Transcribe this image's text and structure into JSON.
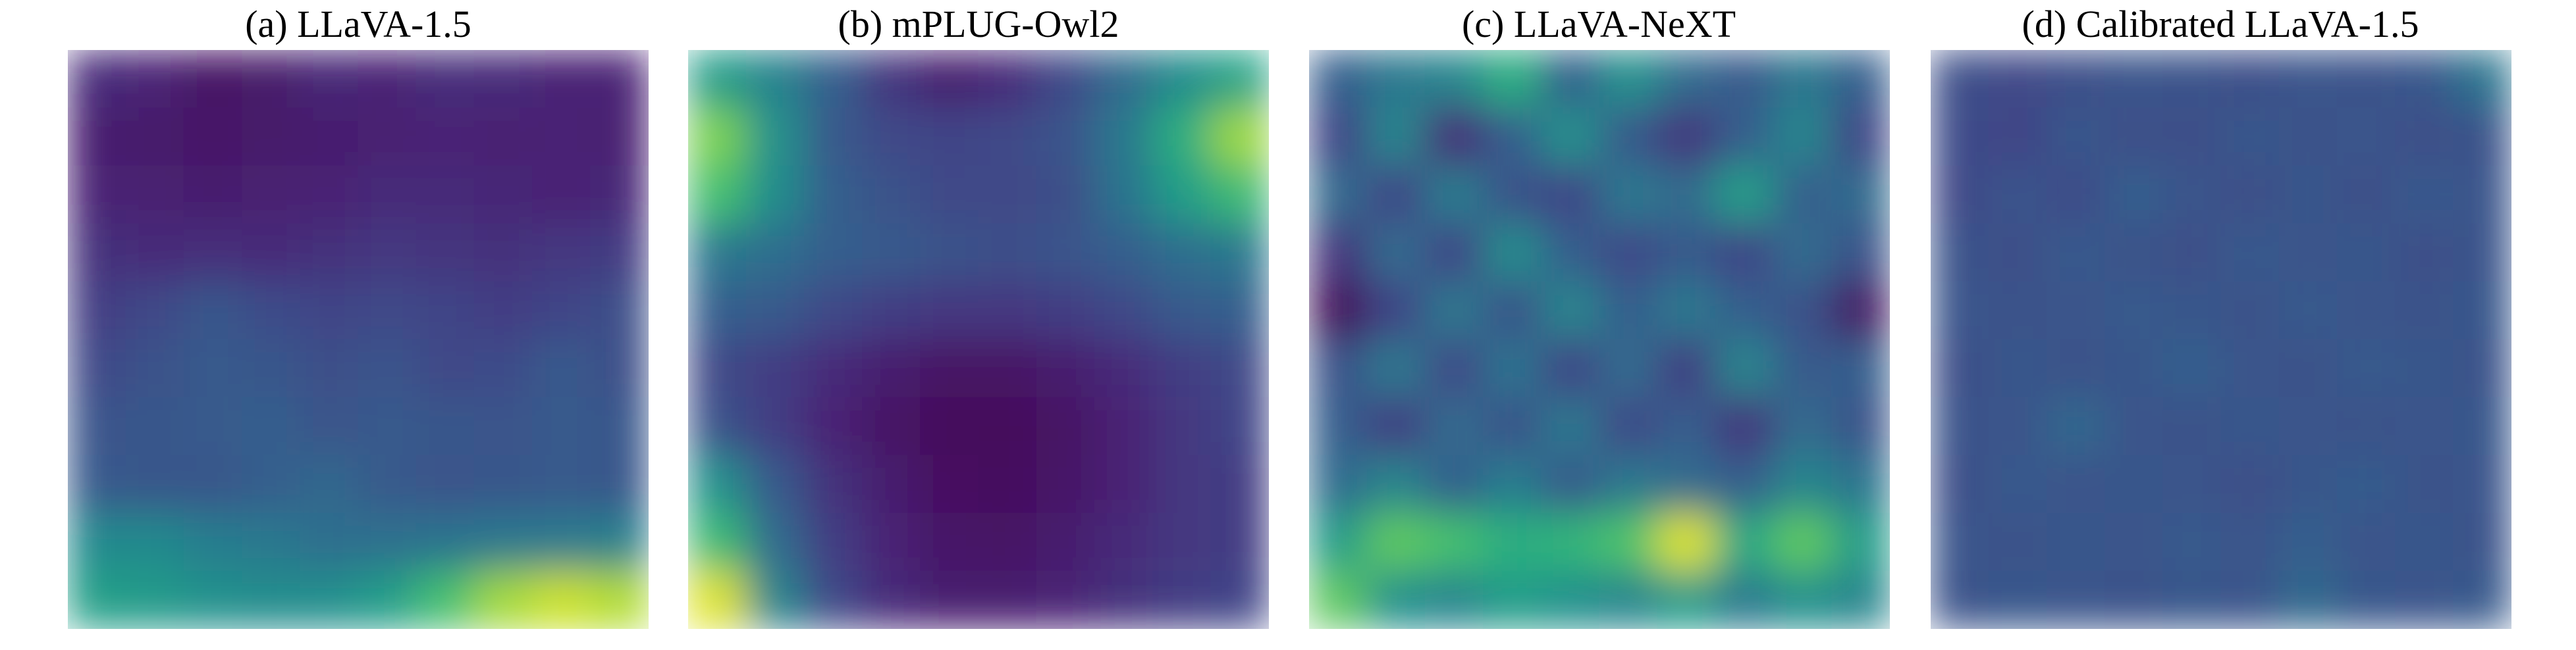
{
  "chart_data": [
    {
      "type": "heatmap",
      "title": "(a) LLaVA-1.5",
      "colormap": "viridis",
      "grid": false,
      "values": [
        [
          0.12,
          0.1,
          0.05,
          0.07,
          0.11,
          0.1,
          0.13,
          0.12,
          0.1,
          0.1
        ],
        [
          0.08,
          0.07,
          0.06,
          0.07,
          0.08,
          0.09,
          0.1,
          0.09,
          0.1,
          0.09
        ],
        [
          0.1,
          0.09,
          0.08,
          0.09,
          0.1,
          0.12,
          0.12,
          0.11,
          0.1,
          0.11
        ],
        [
          0.14,
          0.12,
          0.13,
          0.12,
          0.14,
          0.16,
          0.15,
          0.14,
          0.16,
          0.17
        ],
        [
          0.18,
          0.22,
          0.27,
          0.23,
          0.2,
          0.22,
          0.2,
          0.18,
          0.2,
          0.24
        ],
        [
          0.22,
          0.25,
          0.28,
          0.27,
          0.24,
          0.26,
          0.22,
          0.23,
          0.28,
          0.24
        ],
        [
          0.26,
          0.27,
          0.28,
          0.3,
          0.26,
          0.28,
          0.27,
          0.26,
          0.28,
          0.27
        ],
        [
          0.28,
          0.27,
          0.27,
          0.3,
          0.33,
          0.28,
          0.26,
          0.27,
          0.28,
          0.27
        ],
        [
          0.47,
          0.47,
          0.42,
          0.4,
          0.36,
          0.37,
          0.38,
          0.4,
          0.41,
          0.43
        ],
        [
          0.56,
          0.54,
          0.5,
          0.48,
          0.49,
          0.55,
          0.7,
          0.86,
          0.92,
          0.88
        ]
      ]
    },
    {
      "type": "heatmap",
      "title": "(b) mPLUG-Owl2",
      "colormap": "viridis",
      "grid": false,
      "values": [
        [
          0.55,
          0.44,
          0.3,
          0.15,
          0.08,
          0.12,
          0.22,
          0.35,
          0.48,
          0.58
        ],
        [
          0.8,
          0.5,
          0.28,
          0.22,
          0.2,
          0.22,
          0.26,
          0.4,
          0.62,
          0.85
        ],
        [
          0.7,
          0.48,
          0.3,
          0.25,
          0.22,
          0.22,
          0.24,
          0.38,
          0.55,
          0.68
        ],
        [
          0.4,
          0.36,
          0.3,
          0.28,
          0.25,
          0.24,
          0.26,
          0.3,
          0.36,
          0.4
        ],
        [
          0.3,
          0.28,
          0.22,
          0.18,
          0.16,
          0.16,
          0.18,
          0.22,
          0.28,
          0.3
        ],
        [
          0.22,
          0.18,
          0.12,
          0.08,
          0.05,
          0.05,
          0.08,
          0.12,
          0.18,
          0.22
        ],
        [
          0.25,
          0.18,
          0.1,
          0.05,
          0.02,
          0.02,
          0.05,
          0.1,
          0.16,
          0.2
        ],
        [
          0.5,
          0.28,
          0.14,
          0.08,
          0.04,
          0.03,
          0.06,
          0.1,
          0.16,
          0.18
        ],
        [
          0.68,
          0.35,
          0.18,
          0.1,
          0.06,
          0.05,
          0.08,
          0.12,
          0.16,
          0.18
        ],
        [
          0.95,
          0.45,
          0.22,
          0.12,
          0.08,
          0.08,
          0.1,
          0.14,
          0.18,
          0.2
        ]
      ]
    },
    {
      "type": "heatmap",
      "title": "(c) LLaVA-NeXT",
      "colormap": "viridis",
      "grid": false,
      "values": [
        [
          0.3,
          0.4,
          0.45,
          0.62,
          0.3,
          0.5,
          0.35,
          0.28,
          0.4,
          0.3
        ],
        [
          0.2,
          0.45,
          0.12,
          0.3,
          0.5,
          0.28,
          0.15,
          0.3,
          0.45,
          0.2
        ],
        [
          0.35,
          0.2,
          0.42,
          0.25,
          0.2,
          0.4,
          0.35,
          0.55,
          0.3,
          0.35
        ],
        [
          0.15,
          0.35,
          0.2,
          0.48,
          0.3,
          0.22,
          0.28,
          0.2,
          0.35,
          0.25
        ],
        [
          0.02,
          0.2,
          0.4,
          0.25,
          0.45,
          0.3,
          0.4,
          0.3,
          0.25,
          0.05
        ],
        [
          0.25,
          0.4,
          0.22,
          0.38,
          0.2,
          0.35,
          0.18,
          0.45,
          0.28,
          0.3
        ],
        [
          0.3,
          0.18,
          0.35,
          0.25,
          0.4,
          0.22,
          0.3,
          0.15,
          0.35,
          0.25
        ],
        [
          0.35,
          0.45,
          0.3,
          0.42,
          0.28,
          0.4,
          0.35,
          0.3,
          0.45,
          0.38
        ],
        [
          0.55,
          0.75,
          0.7,
          0.62,
          0.65,
          0.72,
          0.95,
          0.6,
          0.75,
          0.55
        ],
        [
          0.75,
          0.5,
          0.45,
          0.55,
          0.5,
          0.45,
          0.55,
          0.4,
          0.5,
          0.45
        ]
      ]
    },
    {
      "type": "heatmap",
      "title": "(d) Calibrated LLaVA-1.5",
      "colormap": "viridis",
      "grid": false,
      "values": [
        [
          0.24,
          0.22,
          0.24,
          0.26,
          0.25,
          0.24,
          0.26,
          0.25,
          0.27,
          0.38
        ],
        [
          0.23,
          0.2,
          0.27,
          0.24,
          0.24,
          0.27,
          0.25,
          0.26,
          0.24,
          0.25
        ],
        [
          0.22,
          0.26,
          0.23,
          0.3,
          0.26,
          0.24,
          0.27,
          0.24,
          0.28,
          0.26
        ],
        [
          0.25,
          0.24,
          0.28,
          0.25,
          0.24,
          0.28,
          0.26,
          0.27,
          0.24,
          0.26
        ],
        [
          0.26,
          0.25,
          0.26,
          0.28,
          0.27,
          0.25,
          0.28,
          0.26,
          0.25,
          0.27
        ],
        [
          0.24,
          0.27,
          0.25,
          0.27,
          0.3,
          0.26,
          0.25,
          0.28,
          0.27,
          0.25
        ],
        [
          0.25,
          0.26,
          0.33,
          0.26,
          0.25,
          0.27,
          0.26,
          0.25,
          0.26,
          0.27
        ],
        [
          0.24,
          0.28,
          0.26,
          0.27,
          0.26,
          0.24,
          0.27,
          0.29,
          0.25,
          0.26
        ],
        [
          0.26,
          0.25,
          0.27,
          0.26,
          0.28,
          0.26,
          0.3,
          0.26,
          0.27,
          0.25
        ],
        [
          0.25,
          0.27,
          0.26,
          0.25,
          0.27,
          0.26,
          0.34,
          0.27,
          0.26,
          0.28
        ]
      ]
    }
  ]
}
